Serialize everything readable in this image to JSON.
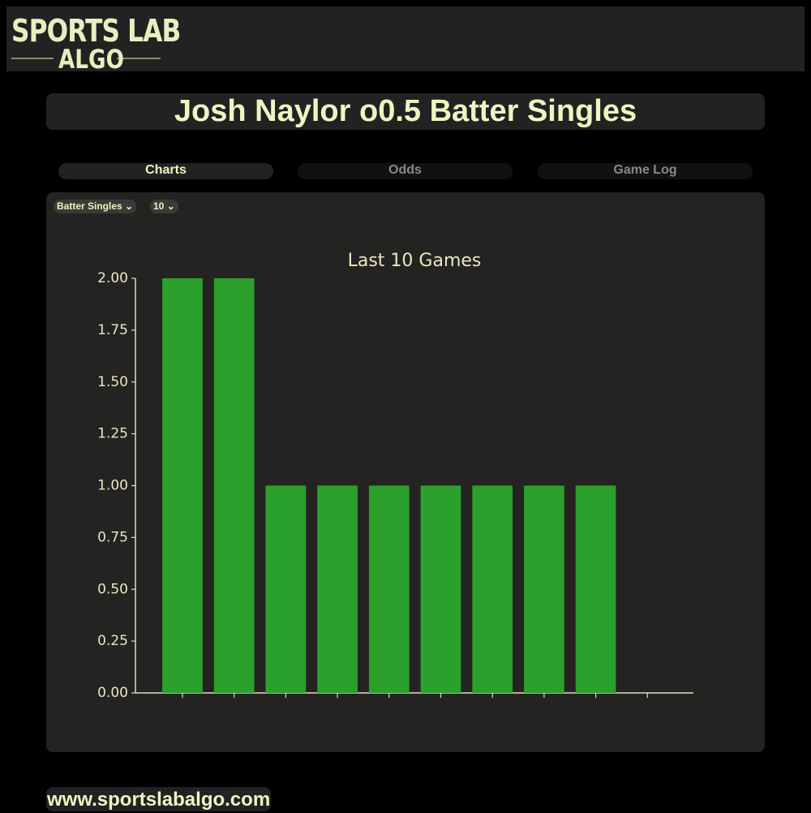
{
  "logo": {
    "line1": "SPORTS LAB",
    "line2": "ALGO"
  },
  "header": {
    "title": "Josh Naylor o0.5 Batter Singles"
  },
  "tabs": [
    "Charts",
    "Odds",
    "Game Log"
  ],
  "controls": {
    "stat": "Batter Singles",
    "games": "10"
  },
  "chart_data": {
    "type": "bar",
    "title": "Last 10 Games",
    "categories": [
      null,
      null,
      null,
      null,
      null,
      null,
      null,
      null,
      null,
      null
    ],
    "values": [
      2,
      2,
      1,
      1,
      1,
      1,
      1,
      1,
      1,
      0
    ],
    "color": "#2ca02c",
    "ylim": [
      0,
      2
    ],
    "yticks": [
      {
        "value": 0,
        "label": "0.00"
      },
      {
        "value": 0.25,
        "label": "0.25"
      },
      {
        "value": 0.5,
        "label": "0.50"
      },
      {
        "value": 0.75,
        "label": "0.75"
      },
      {
        "value": 1,
        "label": "1.00"
      },
      {
        "value": 1.25,
        "label": "1.25"
      },
      {
        "value": 1.5,
        "label": "1.50"
      },
      {
        "value": 1.75,
        "label": "1.75"
      },
      {
        "value": 2,
        "label": "2.00"
      }
    ]
  },
  "footer": {
    "url": "www.sportslabalgo.com"
  }
}
